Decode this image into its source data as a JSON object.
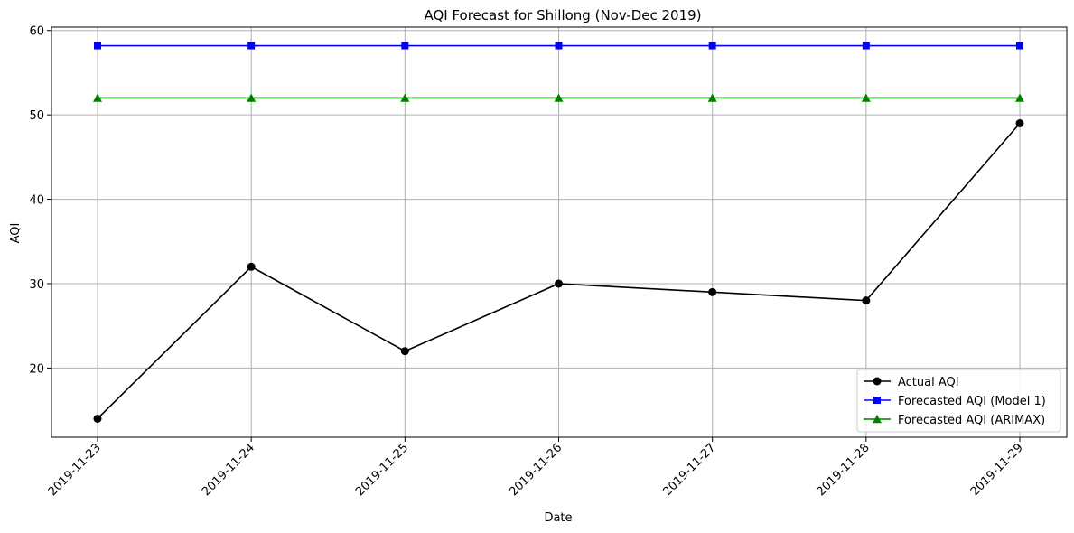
{
  "chart_data": {
    "type": "line",
    "title": "AQI Forecast for Shillong (Nov-Dec 2019)",
    "xlabel": "Date",
    "ylabel": "AQI",
    "categories": [
      "2019-11-23",
      "2019-11-24",
      "2019-11-25",
      "2019-11-26",
      "2019-11-27",
      "2019-11-28",
      "2019-11-29"
    ],
    "yticks": [
      "20",
      "30",
      "40",
      "50",
      "60"
    ],
    "ylim": [
      11.8,
      60.4
    ],
    "grid": true,
    "legend_position": "bottom-right",
    "series": [
      {
        "name": "Actual AQI",
        "values": [
          14,
          32,
          22,
          30,
          29,
          28,
          49
        ],
        "color": "#000000",
        "marker": "circle"
      },
      {
        "name": "Forecasted AQI (Model 1)",
        "values": [
          58.2,
          58.2,
          58.2,
          58.2,
          58.2,
          58.2,
          58.2
        ],
        "color": "#0000ff",
        "marker": "square"
      },
      {
        "name": "Forecasted AQI (ARIMAX)",
        "values": [
          52,
          52,
          52,
          52,
          52,
          52,
          52
        ],
        "color": "#008000",
        "marker": "triangle"
      }
    ]
  }
}
